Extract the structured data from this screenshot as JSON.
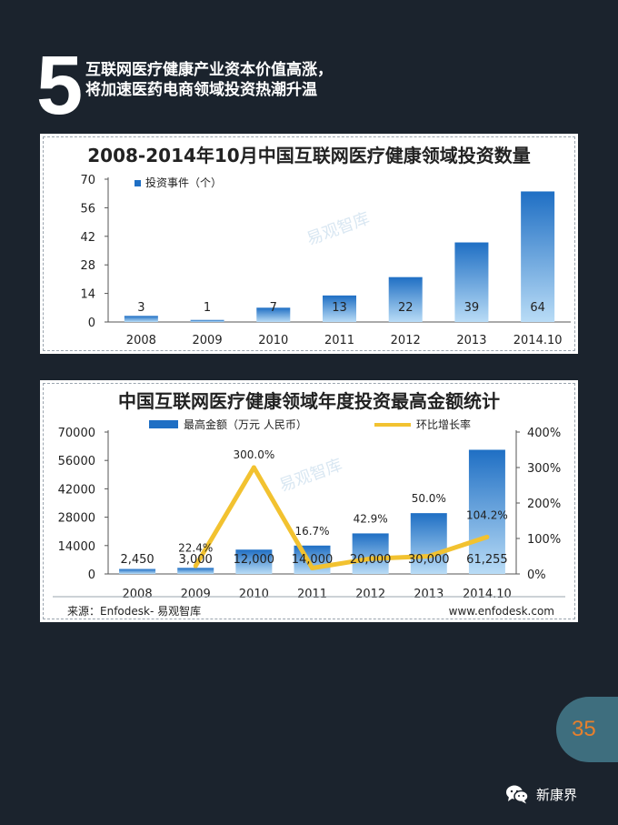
{
  "header": {
    "number": "5",
    "line1": "互联网医疗健康产业资本价值高涨，",
    "line2": "将加速医药电商领域投资热潮升温"
  },
  "chart_data": [
    {
      "type": "bar",
      "title": "2008-2014年10月中国互联网医疗健康领域投资数量",
      "categories": [
        "2008",
        "2009",
        "2010",
        "2011",
        "2012",
        "2013",
        "2014.10"
      ],
      "series": [
        {
          "name": "投资事件（个）",
          "values": [
            3,
            1,
            7,
            13,
            22,
            39,
            64
          ]
        }
      ],
      "ylim": [
        0,
        70
      ],
      "yticks": [
        0,
        14,
        28,
        42,
        56,
        70
      ],
      "value_labels": [
        "3",
        "1",
        "7",
        "13",
        "22",
        "39",
        "64"
      ],
      "watermark": "易观智库",
      "bar_color": "#1f6fc4"
    },
    {
      "type": "bar+line",
      "title": "中国互联网医疗健康领域年度投资最高金额统计",
      "categories": [
        "2008",
        "2009",
        "2010",
        "2011",
        "2012",
        "2013",
        "2014.10"
      ],
      "series": [
        {
          "name": "最高金额（万元 人民币）",
          "values": [
            2450,
            3000,
            12000,
            14000,
            20000,
            30000,
            61255
          ],
          "labels": [
            "2,450",
            "3,000",
            "12,000",
            "14,000",
            "20,000",
            "30,000",
            "61,255"
          ],
          "axis": "left"
        },
        {
          "name": "环比增长率",
          "values": [
            22.4,
            300.0,
            16.7,
            42.9,
            50.0,
            104.2
          ],
          "x": [
            "2009",
            "2010",
            "2011",
            "2012",
            "2013",
            "2014.10"
          ],
          "labels": [
            "22.4%",
            "300.0%",
            "16.7%",
            "42.9%",
            "50.0%",
            "104.2%"
          ],
          "axis": "right"
        }
      ],
      "ylim_left": [
        0,
        70000
      ],
      "yticks_left": [
        "0",
        "14000",
        "28000",
        "42000",
        "56000",
        "70000"
      ],
      "ylim_right": [
        0,
        400
      ],
      "yticks_right": [
        "0%",
        "100%",
        "200%",
        "300%",
        "400%"
      ],
      "source": "来源：Enfodesk- 易观智库",
      "website": "www.enfodesk.com",
      "watermark": "易观智库",
      "bar_color": "#1f6fc4",
      "line_color": "#f2c230"
    }
  ],
  "page": {
    "number": "35",
    "brand": "新康界"
  },
  "colors": {
    "background": "#1b232d",
    "badge": "#3e6e7e",
    "page_number": "#e8802c"
  }
}
